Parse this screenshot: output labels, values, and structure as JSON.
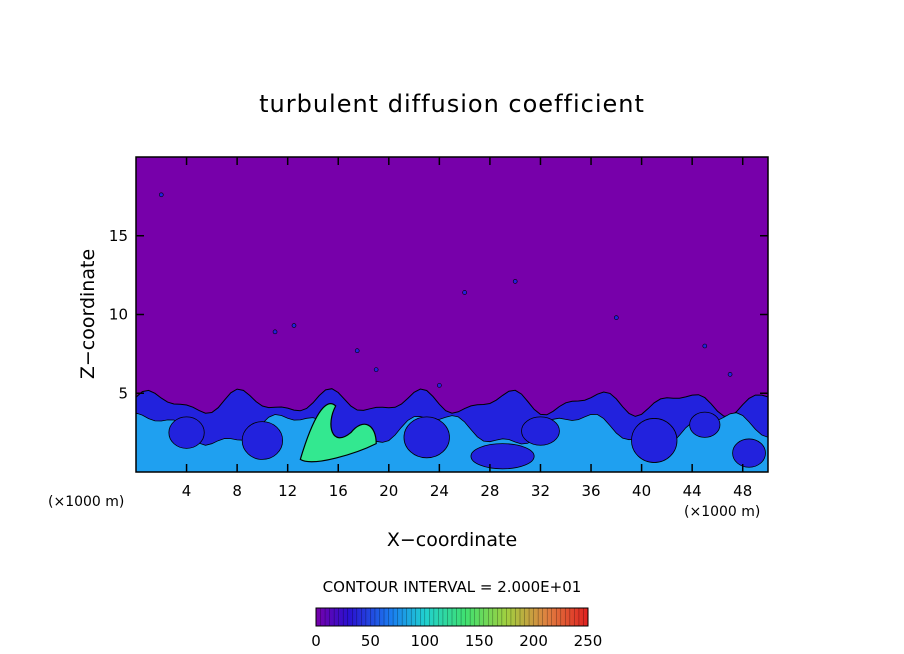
{
  "chart_data": {
    "type": "heatmap",
    "title": "turbulent diffusion coefficient",
    "xlabel": "X−coordinate",
    "ylabel": "Z−coordinate",
    "x_unit_left": "(×1000 m)",
    "x_unit_right": "(×1000 m)",
    "xlim": [
      0,
      50
    ],
    "ylim": [
      0,
      20
    ],
    "xticks": [
      4,
      8,
      12,
      16,
      20,
      24,
      28,
      32,
      36,
      40,
      44,
      48
    ],
    "yticks": [
      5,
      10,
      15
    ],
    "contour_interval_label": "CONTOUR INTERVAL = 2.000E+01",
    "colorbar": {
      "range": [
        0,
        250
      ],
      "ticks": [
        0,
        50,
        100,
        150,
        200,
        250
      ]
    },
    "field_description": {
      "background_value": 0,
      "turbulent_layer_top_z": 5,
      "max_value_region_x": [
        13,
        19
      ],
      "max_value_estimate": 120
    },
    "colors": {
      "background": "#7700aa",
      "low": "#2222dd",
      "mid": "#1fa0f0",
      "high": "#33e890"
    }
  }
}
